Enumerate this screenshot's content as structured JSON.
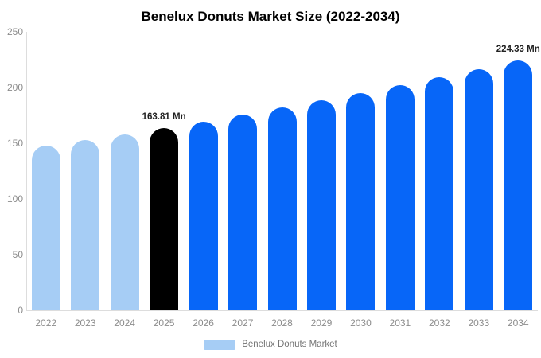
{
  "title": "Benelux Donuts Market Size (2022-2034)",
  "legend": {
    "label": "Benelux Donuts Market",
    "swatch_color": "#a6cdf5"
  },
  "colors": {
    "historical_bar": "#a6cdf5",
    "base_year_bar": "#000000",
    "forecast_bar": "#0766f8",
    "axis_line": "#dddddd",
    "tick_label": "#8c8c8c",
    "value_label": "#222222",
    "background": "#ffffff"
  },
  "chart_data": {
    "type": "bar",
    "title": "Benelux Donuts Market Size (2022-2034)",
    "unit": "Mn",
    "categories": [
      "2022",
      "2023",
      "2024",
      "2025",
      "2026",
      "2027",
      "2028",
      "2029",
      "2030",
      "2031",
      "2032",
      "2033",
      "2034"
    ],
    "series": [
      {
        "name": "Benelux Donuts Market",
        "values": [
          147.53,
          152.77,
          158.19,
          163.81,
          169.63,
          175.66,
          181.9,
          188.37,
          195.06,
          202.0,
          209.18,
          216.61,
          224.33
        ],
        "roles": [
          "historical",
          "historical",
          "historical",
          "base",
          "forecast",
          "forecast",
          "forecast",
          "forecast",
          "forecast",
          "forecast",
          "forecast",
          "forecast",
          "forecast"
        ]
      }
    ],
    "annotations": [
      {
        "category": "2025",
        "index": 3,
        "text": "163.81 Mn"
      },
      {
        "category": "2034",
        "index": 12,
        "text": "224.33 Mn"
      }
    ],
    "ylim": [
      0,
      250
    ],
    "yticks": [
      0,
      50,
      100,
      150,
      200,
      250
    ],
    "xlabel": "",
    "ylabel": "",
    "grid": false,
    "legend_position": "bottom"
  }
}
